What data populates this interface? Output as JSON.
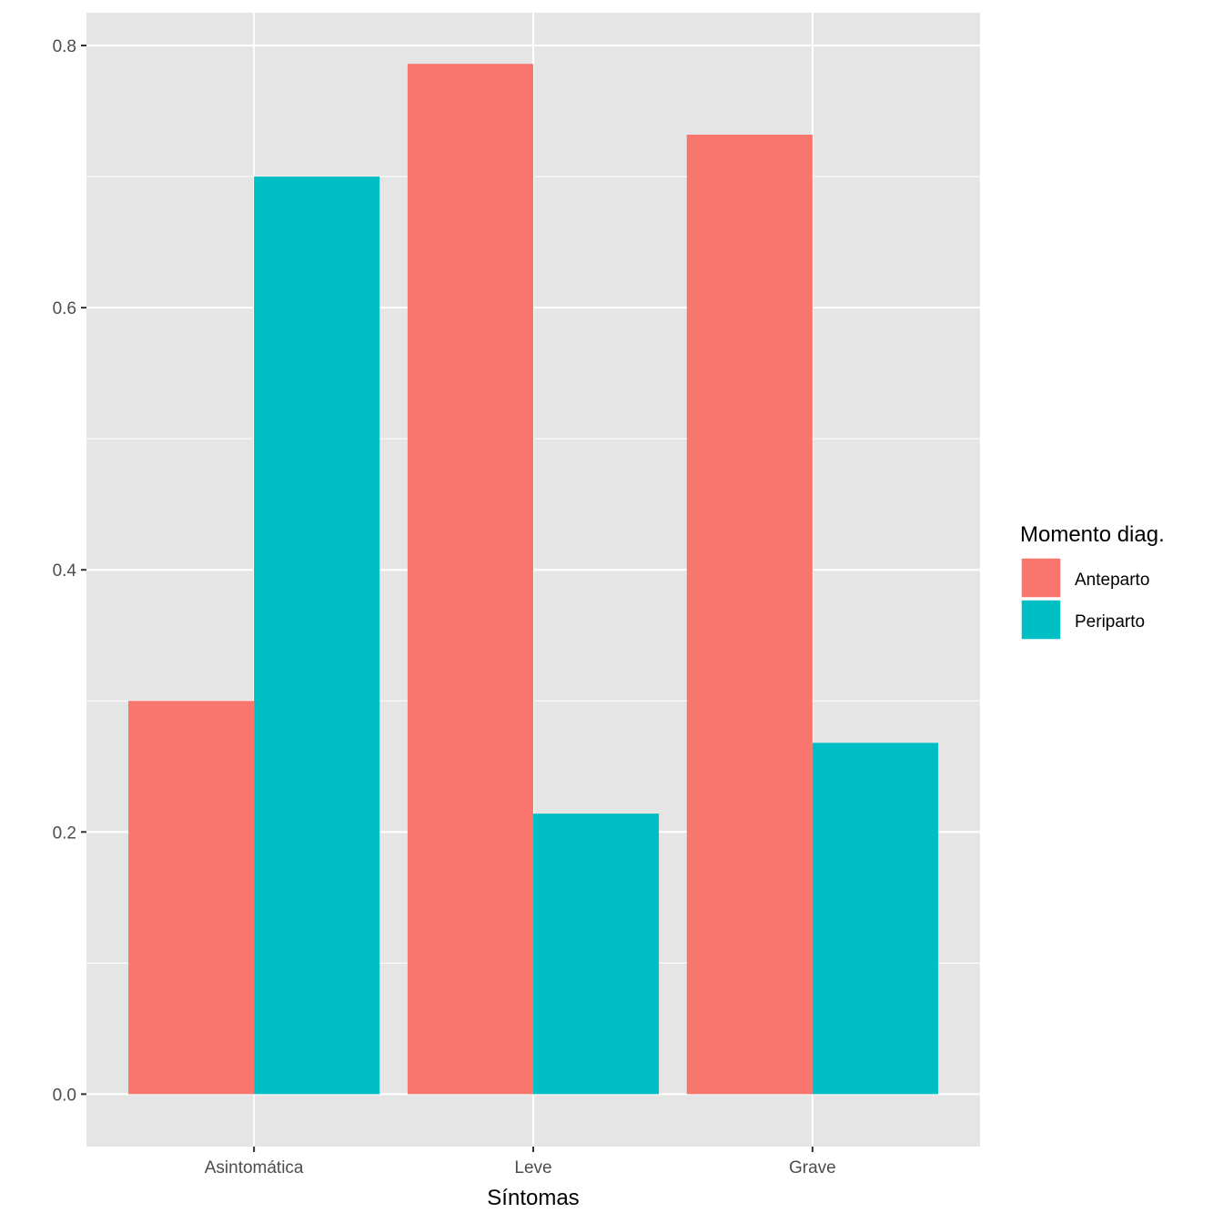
{
  "chart_data": {
    "type": "bar",
    "title": "",
    "xlabel": "Síntomas",
    "ylabel": "",
    "categories": [
      "Asintomática",
      "Leve",
      "Grave"
    ],
    "series": [
      {
        "name": "Anteparto",
        "color": "#F8766D",
        "values": [
          0.3,
          0.786,
          0.732
        ]
      },
      {
        "name": "Periparto",
        "color": "#00BFC4",
        "values": [
          0.7,
          0.214,
          0.268
        ]
      }
    ],
    "ylim": [
      -0.04,
      0.825
    ],
    "yticks": [
      0.0,
      0.2,
      0.4,
      0.6,
      0.8
    ],
    "ytick_labels": [
      "0.0",
      "0.2",
      "0.4",
      "0.6",
      "0.8"
    ],
    "grid": true,
    "legend": {
      "title": "Momento diag.",
      "position": "right"
    }
  }
}
